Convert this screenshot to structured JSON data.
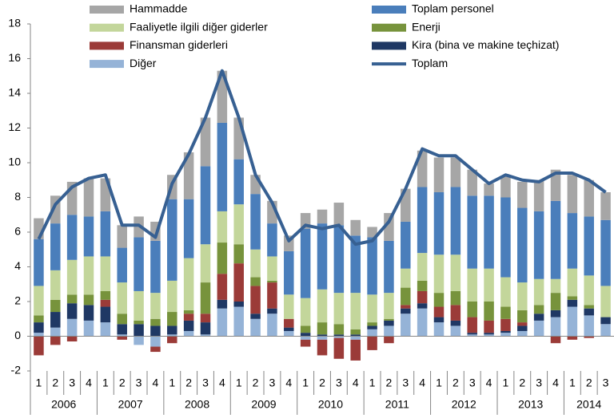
{
  "chart_data": {
    "type": "bar",
    "stacked": true,
    "categories": [
      "1",
      "2",
      "3",
      "4",
      "1",
      "2",
      "3",
      "4",
      "1",
      "2",
      "3",
      "4",
      "1",
      "2",
      "3",
      "4",
      "1",
      "2",
      "3",
      "4",
      "1",
      "2",
      "3",
      "4",
      "1",
      "2",
      "3",
      "4",
      "1",
      "2",
      "3",
      "4",
      "1",
      "2",
      "3"
    ],
    "years": [
      "2006",
      "2007",
      "2008",
      "2009",
      "2010",
      "2011",
      "2012",
      "2013",
      "2014"
    ],
    "ylim": [
      -2,
      18
    ],
    "yticks": [
      -2,
      0,
      2,
      4,
      6,
      8,
      10,
      12,
      14,
      16,
      18
    ],
    "series": [
      {
        "name": "Diğer",
        "color": "#95b3d7",
        "values": [
          0.2,
          0.5,
          1.0,
          0.9,
          0.8,
          0.1,
          -0.5,
          -0.6,
          0.1,
          0.3,
          0.1,
          1.6,
          1.7,
          1.0,
          1.3,
          0.3,
          -0.2,
          -0.2,
          -0.1,
          -0.2,
          0.4,
          0.6,
          1.3,
          1.6,
          0.8,
          0.6,
          0.1,
          0.1,
          0.2,
          0.3,
          0.9,
          1.1,
          1.7,
          1.2,
          0.7
        ]
      },
      {
        "name": "Kira (bina ve makine teçhizat)",
        "color": "#1f3864",
        "values": [
          0.6,
          0.9,
          0.9,
          0.9,
          0.9,
          0.6,
          0.7,
          0.6,
          0.5,
          0.6,
          0.7,
          0.5,
          0.3,
          0.3,
          0.3,
          0.2,
          0.2,
          0.1,
          0.1,
          0.1,
          0.2,
          0.3,
          0.3,
          0.3,
          0.3,
          0.3,
          0.1,
          0.1,
          0.1,
          0.3,
          0.4,
          0.4,
          0.4,
          0.4,
          0.4
        ]
      },
      {
        "name": "Finansman giderleri",
        "color": "#9b3b38",
        "values": [
          -1.1,
          -0.5,
          -0.3,
          0,
          0.4,
          -0.2,
          0,
          -0.3,
          -0.4,
          0.4,
          0.5,
          1.5,
          2.2,
          1.6,
          1.5,
          0.5,
          -0.4,
          -0.9,
          -1.2,
          -1.2,
          -0.8,
          -0.4,
          0.2,
          0.7,
          0.6,
          0.9,
          0.9,
          0.7,
          0.7,
          0.2,
          0,
          -0.4,
          -0.2,
          -0.1,
          0
        ]
      },
      {
        "name": "Enerji",
        "color": "#77933c",
        "values": [
          0.4,
          0.7,
          0.5,
          0.6,
          0.5,
          0.6,
          0.2,
          0.4,
          0.8,
          0.2,
          1.8,
          1.8,
          1.1,
          0.5,
          0.1,
          0,
          0.4,
          0.7,
          0.6,
          0.3,
          0.2,
          0.1,
          1.0,
          0.6,
          0.8,
          0.8,
          0.9,
          1.1,
          0.7,
          0.7,
          0.5,
          1.0,
          0.2,
          0.2,
          0
        ]
      },
      {
        "name": "Faaliyetle ilgili diğer giderler",
        "color": "#c3d69b",
        "values": [
          1.7,
          1.7,
          2.0,
          2.2,
          2.0,
          1.8,
          1.7,
          1.5,
          1.8,
          3.0,
          2.2,
          1.8,
          2.3,
          1.6,
          1.4,
          1.4,
          1.6,
          1.9,
          1.8,
          2.1,
          1.6,
          1.5,
          1.1,
          1.6,
          2.2,
          2.1,
          1.9,
          1.9,
          1.7,
          1.6,
          1.5,
          0.8,
          1.6,
          1.7,
          1.8
        ]
      },
      {
        "name": "Toplam personel",
        "color": "#4a7ebb",
        "values": [
          2.7,
          2.7,
          2.6,
          2.3,
          2.6,
          2.0,
          3.1,
          3.0,
          4.7,
          3.4,
          4.5,
          5.1,
          2.6,
          3.2,
          1.9,
          2.5,
          4.0,
          3.8,
          3.9,
          3.3,
          3.3,
          3.0,
          2.7,
          3.8,
          3.6,
          3.9,
          4.2,
          4.2,
          4.6,
          4.3,
          3.9,
          4.5,
          3.2,
          3.4,
          3.8
        ]
      },
      {
        "name": "Hammadde",
        "color": "#a6a6a6",
        "values": [
          1.2,
          1.6,
          1.9,
          2.2,
          1.9,
          1.3,
          1.2,
          1.1,
          1.4,
          2.7,
          2.8,
          3.0,
          2.4,
          1.1,
          1.3,
          0.9,
          0.9,
          0.8,
          1.3,
          0.9,
          0.6,
          1.6,
          1.9,
          2.1,
          2.0,
          1.7,
          1.5,
          0.7,
          1.2,
          1.5,
          1.8,
          1.8,
          2.2,
          2.1,
          1.6
        ]
      },
      {
        "name": "Toplam",
        "type": "line",
        "color": "#376092",
        "values": [
          5.6,
          7.6,
          8.6,
          9.1,
          9.3,
          6.4,
          6.4,
          5.7,
          8.8,
          10.5,
          12.6,
          15.3,
          12.6,
          9.3,
          7.7,
          5.5,
          6.4,
          6.2,
          6.4,
          5.3,
          5.5,
          6.6,
          8.5,
          10.8,
          10.4,
          10.4,
          9.6,
          8.8,
          9.3,
          9.0,
          8.9,
          9.4,
          9.4,
          9.0,
          8.3
        ]
      }
    ]
  }
}
